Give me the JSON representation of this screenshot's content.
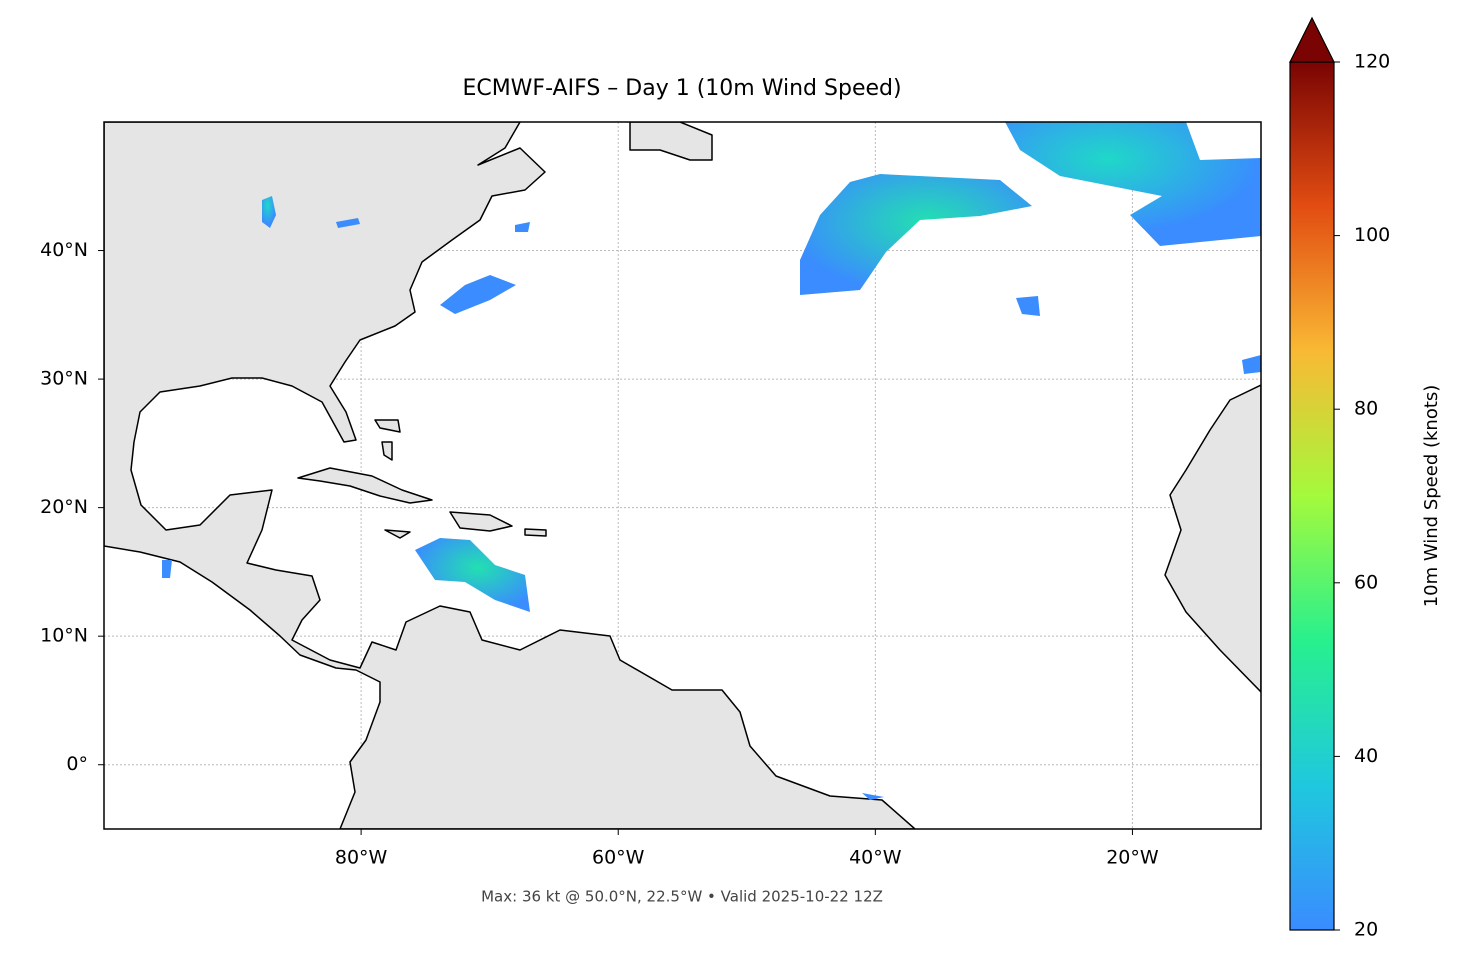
{
  "chart_data": {
    "type": "map",
    "title": "ECMWF-AIFS – Day 1 (10m Wind Speed)",
    "footer": "Max: 36 kt @ 50.0°N, 22.5°W • Valid 2025-10-22 12Z",
    "xlim": [
      -100,
      -10
    ],
    "ylim": [
      -5,
      50
    ],
    "xticks": [
      {
        "value": -80,
        "label": "80°W"
      },
      {
        "value": -60,
        "label": "60°W"
      },
      {
        "value": -40,
        "label": "40°W"
      },
      {
        "value": -20,
        "label": "20°W"
      }
    ],
    "yticks": [
      {
        "value": 0,
        "label": "0°"
      },
      {
        "value": 10,
        "label": "10°N"
      },
      {
        "value": 20,
        "label": "20°N"
      },
      {
        "value": 30,
        "label": "30°N"
      },
      {
        "value": 40,
        "label": "40°N"
      }
    ],
    "grid": true,
    "colorbar": {
      "label": "10m Wind Speed (knots)",
      "lim": [
        20,
        120
      ],
      "ticks": [
        20,
        40,
        60,
        80,
        100,
        120
      ],
      "colors": [
        "#3a8cff",
        "#1fc8de",
        "#28f08e",
        "#a4fa3c",
        "#f9b934",
        "#e24d12",
        "#7a0403"
      ],
      "extend": "max"
    }
  }
}
